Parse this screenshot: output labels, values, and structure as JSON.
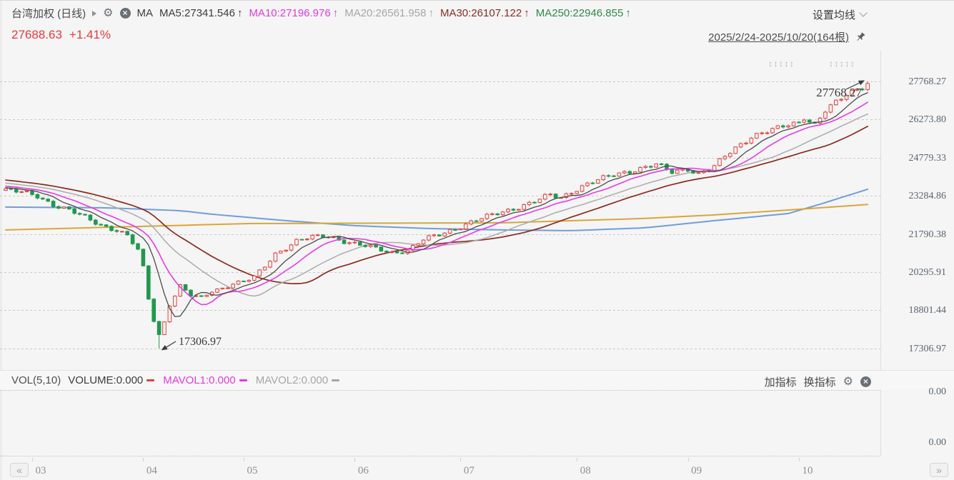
{
  "header": {
    "symbol": "台湾加权 (日线)",
    "ma_group_label": "MA",
    "ma_items": [
      {
        "label": "MA5:27341.546",
        "arrow": "↑",
        "color": "#3c3c3c"
      },
      {
        "label": "MA10:27196.976",
        "arrow": "↑",
        "color": "#df3ae0"
      },
      {
        "label": "MA20:26561.958",
        "arrow": "↑",
        "color": "#a6a6a6"
      },
      {
        "label": "MA30:26107.122",
        "arrow": "↑",
        "color": "#8e2b1e"
      },
      {
        "label": "MA250:22946.855",
        "arrow": "↑",
        "color": "#2e8b44"
      }
    ],
    "ma_settings_label": "设置均线",
    "price": "27688.63",
    "change": "+1.41%",
    "price_color": "#e5393d",
    "date_range": "2025/2/24-2025/10/20(164根)",
    "drag_handles": [
      "↕↕↕↕↕",
      "↕↕↕↕↕"
    ]
  },
  "volume_panel": {
    "indicator_label": "VOL(5,10)",
    "items": [
      {
        "label": "VOLUME:0.000",
        "color": "#3c3c3c",
        "dash_color": "#e0433e"
      },
      {
        "label": "MAVOL1:0.000",
        "color": "#df3ae0",
        "dash_color": "#df3ae0"
      },
      {
        "label": "MAVOL2:0.000",
        "color": "#a6a6a6",
        "dash_color": "#a6a6a6"
      }
    ],
    "add_indicator_label": "加指标",
    "switch_indicator_label": "换指标",
    "axis_labels": [
      "0.00",
      "0.00"
    ]
  },
  "time_axis": {
    "prev_label": "«",
    "next_label": "»",
    "months": [
      {
        "label": "03",
        "day": 5
      },
      {
        "label": "04",
        "day": 26
      },
      {
        "label": "05",
        "day": 45
      },
      {
        "label": "06",
        "day": 66
      },
      {
        "label": "07",
        "day": 86
      },
      {
        "label": "08",
        "day": 108
      },
      {
        "label": "09",
        "day": 129
      },
      {
        "label": "10",
        "day": 150
      }
    ]
  },
  "chart_data": {
    "type": "candlestick",
    "title": "台湾加权 (日线)",
    "x_range": "2025/2/24 - 2025/10/20",
    "bars": 164,
    "grid": true,
    "y_axis_labels": [
      "27768.27",
      "26273.80",
      "24779.33",
      "23284.86",
      "21790.38",
      "20295.91",
      "18801.44",
      "17306.97"
    ],
    "colors": {
      "up": "#e0433e",
      "down": "#21984e",
      "background": "#f5f5f5",
      "grid": "#c9c9c9",
      "ma5": "#4a4a4a",
      "ma10": "#e83be8",
      "ma20": "#ababab",
      "ma30": "#8c2a1e",
      "ma250_line": "#d9a63a",
      "ma_blue_line": "#6f9ddc",
      "annotation": "#3a3a3a"
    },
    "close_keypoints": [
      [
        0,
        23520
      ],
      [
        3,
        23420
      ],
      [
        6,
        23280
      ],
      [
        9,
        22950
      ],
      [
        12,
        22720
      ],
      [
        15,
        22430
      ],
      [
        18,
        22150
      ],
      [
        21,
        21950
      ],
      [
        23,
        21720
      ],
      [
        25,
        21150
      ],
      [
        26,
        20450
      ],
      [
        27,
        19250
      ],
      [
        28,
        18420
      ],
      [
        29,
        17850
      ],
      [
        30,
        18350
      ],
      [
        31,
        19050
      ],
      [
        33,
        19750
      ],
      [
        35,
        19380
      ],
      [
        37,
        19260
      ],
      [
        39,
        19560
      ],
      [
        41,
        19680
      ],
      [
        43,
        19860
      ],
      [
        45,
        19920
      ],
      [
        47,
        20080
      ],
      [
        49,
        20520
      ],
      [
        51,
        21020
      ],
      [
        53,
        21260
      ],
      [
        55,
        21520
      ],
      [
        58,
        21660
      ],
      [
        61,
        21710
      ],
      [
        64,
        21520
      ],
      [
        67,
        21360
      ],
      [
        70,
        21210
      ],
      [
        73,
        21060
      ],
      [
        76,
        21160
      ],
      [
        79,
        21560
      ],
      [
        82,
        21760
      ],
      [
        85,
        22010
      ],
      [
        88,
        22260
      ],
      [
        91,
        22460
      ],
      [
        94,
        22660
      ],
      [
        97,
        22860
      ],
      [
        100,
        23060
      ],
      [
        103,
        23310
      ],
      [
        105,
        23210
      ],
      [
        107,
        23460
      ],
      [
        110,
        23760
      ],
      [
        113,
        23960
      ],
      [
        115,
        24110
      ],
      [
        118,
        24260
      ],
      [
        121,
        24420
      ],
      [
        123,
        24500
      ],
      [
        126,
        24210
      ],
      [
        129,
        24360
      ],
      [
        131,
        24160
      ],
      [
        134,
        24420
      ],
      [
        136,
        24820
      ],
      [
        139,
        25320
      ],
      [
        141,
        25620
      ],
      [
        143,
        25760
      ],
      [
        146,
        25910
      ],
      [
        148,
        26060
      ],
      [
        150,
        26170
      ],
      [
        151,
        26380
      ],
      [
        153,
        26090
      ],
      [
        155,
        26620
      ],
      [
        157,
        26920
      ],
      [
        159,
        27230
      ],
      [
        161,
        27480
      ],
      [
        163,
        27688.63
      ]
    ],
    "prehistory": {
      "days": 30,
      "from": 24250,
      "to": 23560
    },
    "ma250_keypoints": [
      [
        0,
        21950
      ],
      [
        26,
        22090
      ],
      [
        46,
        22200
      ],
      [
        94,
        22230
      ],
      [
        121,
        22400
      ],
      [
        134,
        22540
      ],
      [
        148,
        22730
      ],
      [
        163,
        22946.855
      ]
    ],
    "blue_keypoints": [
      [
        0,
        22845
      ],
      [
        19,
        22817
      ],
      [
        33,
        22705
      ],
      [
        39,
        22565
      ],
      [
        53,
        22313
      ],
      [
        66,
        22117
      ],
      [
        80,
        22005
      ],
      [
        94,
        21949
      ],
      [
        107,
        21921
      ],
      [
        121,
        22033
      ],
      [
        134,
        22313
      ],
      [
        148,
        22593
      ],
      [
        154,
        22957
      ],
      [
        163,
        23544
      ]
    ],
    "ma_lines": [
      {
        "name": "MA5",
        "period": 5,
        "color": "#4a4a4a",
        "width": 1.3
      },
      {
        "name": "MA10",
        "period": 10,
        "color": "#e83be8",
        "width": 1.6
      },
      {
        "name": "MA20",
        "period": 20,
        "color": "#ababab",
        "width": 1.5
      },
      {
        "name": "MA30",
        "period": 30,
        "color": "#8c2a1e",
        "width": 1.7
      }
    ],
    "annotations": {
      "low_label": "17306.97",
      "low_day": 29,
      "low_value": 17306.97,
      "high_label": "27768.27",
      "high_day": 163,
      "high_value": 27768.27,
      "last_close": 27688.63
    }
  }
}
